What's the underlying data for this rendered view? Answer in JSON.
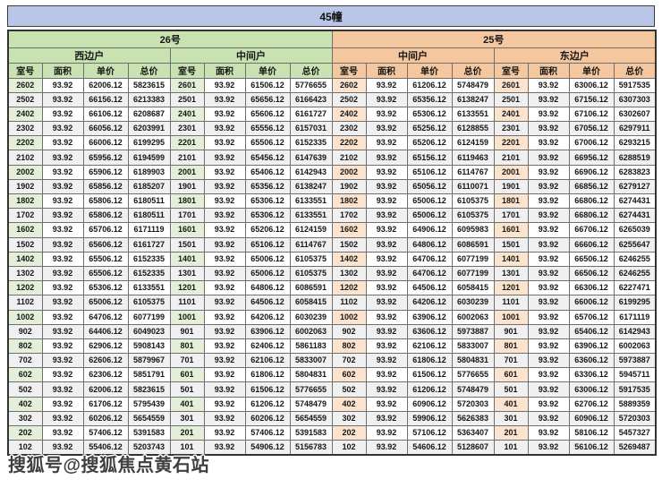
{
  "page": {
    "title": "45幢"
  },
  "watermark": {
    "text": "搜狐号@搜狐焦点黄石站"
  },
  "colors": {
    "title_bg": "#b9c6e8",
    "green_header": "#c9e2b2",
    "green_room_cell": "#e4efda",
    "peach_header": "#f4c79e",
    "peach_room_cell": "#fbe3cd",
    "zebra_row": "#f0f0f0"
  },
  "table": {
    "buildings": [
      {
        "name": "26号"
      },
      {
        "name": "25号"
      }
    ],
    "unit_headers": [
      "西边户",
      "中间户",
      "中间户",
      "东边户"
    ],
    "column_headers": [
      "室号",
      "面积",
      "单价",
      "总价"
    ],
    "groups": [
      {
        "building": "26号",
        "unit": "西边户",
        "rows": [
          [
            "2602",
            "93.92",
            "62006.12",
            "5823615"
          ],
          [
            "2502",
            "93.92",
            "66156.12",
            "6213383"
          ],
          [
            "2402",
            "93.92",
            "66106.12",
            "6208687"
          ],
          [
            "2302",
            "93.92",
            "66056.12",
            "6203991"
          ],
          [
            "2202",
            "93.92",
            "66006.12",
            "6199295"
          ],
          [
            "2102",
            "93.92",
            "65956.12",
            "6194599"
          ],
          [
            "2002",
            "93.92",
            "65906.12",
            "6189903"
          ],
          [
            "1902",
            "93.92",
            "65856.12",
            "6185207"
          ],
          [
            "1802",
            "93.92",
            "65806.12",
            "6180511"
          ],
          [
            "1702",
            "93.92",
            "65806.12",
            "6180511"
          ],
          [
            "1602",
            "93.92",
            "65706.12",
            "6171119"
          ],
          [
            "1502",
            "93.92",
            "65606.12",
            "6161727"
          ],
          [
            "1402",
            "93.92",
            "65506.12",
            "6152335"
          ],
          [
            "1302",
            "93.92",
            "65506.12",
            "6152335"
          ],
          [
            "1202",
            "93.92",
            "65306.12",
            "6133551"
          ],
          [
            "1102",
            "93.92",
            "65006.12",
            "6105375"
          ],
          [
            "1002",
            "93.92",
            "64706.12",
            "6077199"
          ],
          [
            "902",
            "93.92",
            "64406.12",
            "6049023"
          ],
          [
            "802",
            "93.92",
            "62906.12",
            "5908143"
          ],
          [
            "702",
            "93.92",
            "62606.12",
            "5879967"
          ],
          [
            "602",
            "93.92",
            "62306.12",
            "5851791"
          ],
          [
            "502",
            "93.92",
            "62006.12",
            "5823615"
          ],
          [
            "402",
            "93.92",
            "61706.12",
            "5795439"
          ],
          [
            "302",
            "93.92",
            "60206.12",
            "5654559"
          ],
          [
            "202",
            "93.92",
            "57406.12",
            "5391583"
          ],
          [
            "102",
            "93.92",
            "55406.12",
            "5203743"
          ]
        ]
      },
      {
        "building": "26号",
        "unit": "中间户",
        "rows": [
          [
            "2601",
            "93.92",
            "61506.12",
            "5776655"
          ],
          [
            "2501",
            "93.92",
            "65656.12",
            "6166423"
          ],
          [
            "2401",
            "93.92",
            "65606.12",
            "6161727"
          ],
          [
            "2301",
            "93.92",
            "65556.12",
            "6157031"
          ],
          [
            "2201",
            "93.92",
            "65506.12",
            "6152335"
          ],
          [
            "2101",
            "93.92",
            "65456.12",
            "6147639"
          ],
          [
            "2001",
            "93.92",
            "65406.12",
            "6142943"
          ],
          [
            "1901",
            "93.92",
            "65356.12",
            "6138247"
          ],
          [
            "1801",
            "93.92",
            "65306.12",
            "6133551"
          ],
          [
            "1701",
            "93.92",
            "65306.12",
            "6133551"
          ],
          [
            "1601",
            "93.92",
            "65206.12",
            "6124159"
          ],
          [
            "1501",
            "93.92",
            "65106.12",
            "6114767"
          ],
          [
            "1401",
            "93.92",
            "65006.12",
            "6105375"
          ],
          [
            "1301",
            "93.92",
            "65006.12",
            "6105375"
          ],
          [
            "1201",
            "93.92",
            "64806.12",
            "6086591"
          ],
          [
            "1101",
            "93.92",
            "64506.12",
            "6058415"
          ],
          [
            "1001",
            "93.92",
            "64206.12",
            "6030239"
          ],
          [
            "901",
            "93.92",
            "63906.12",
            "6002063"
          ],
          [
            "801",
            "93.92",
            "62406.12",
            "5861183"
          ],
          [
            "701",
            "93.92",
            "62106.12",
            "5833007"
          ],
          [
            "601",
            "93.92",
            "61806.12",
            "5804831"
          ],
          [
            "501",
            "93.92",
            "61506.12",
            "5776655"
          ],
          [
            "401",
            "93.92",
            "61206.12",
            "5748479"
          ],
          [
            "301",
            "93.92",
            "60206.12",
            "5654559"
          ],
          [
            "201",
            "93.92",
            "57406.12",
            "5391583"
          ],
          [
            "101",
            "93.92",
            "54906.12",
            "5156783"
          ]
        ]
      },
      {
        "building": "25号",
        "unit": "中间户",
        "rows": [
          [
            "2602",
            "93.92",
            "61206.12",
            "5748479"
          ],
          [
            "2502",
            "93.92",
            "65356.12",
            "6138247"
          ],
          [
            "2402",
            "93.92",
            "65306.12",
            "6133551"
          ],
          [
            "2302",
            "93.92",
            "65256.12",
            "6128855"
          ],
          [
            "2202",
            "93.92",
            "65206.12",
            "6124159"
          ],
          [
            "2102",
            "93.92",
            "65156.12",
            "6119463"
          ],
          [
            "2002",
            "93.92",
            "65106.12",
            "6114767"
          ],
          [
            "1902",
            "93.92",
            "65056.12",
            "6110071"
          ],
          [
            "1802",
            "93.92",
            "65006.12",
            "6105375"
          ],
          [
            "1702",
            "93.92",
            "65006.12",
            "6105375"
          ],
          [
            "1602",
            "93.92",
            "64906.12",
            "6095983"
          ],
          [
            "1502",
            "93.92",
            "64806.12",
            "6086591"
          ],
          [
            "1402",
            "93.92",
            "64706.12",
            "6077199"
          ],
          [
            "1302",
            "93.92",
            "64706.12",
            "6077199"
          ],
          [
            "1202",
            "93.92",
            "64506.12",
            "6058415"
          ],
          [
            "1102",
            "93.92",
            "64206.12",
            "6030239"
          ],
          [
            "1002",
            "93.92",
            "63906.12",
            "6002063"
          ],
          [
            "902",
            "93.92",
            "63606.12",
            "5973887"
          ],
          [
            "802",
            "93.92",
            "62106.12",
            "5833007"
          ],
          [
            "702",
            "93.92",
            "61806.12",
            "5804831"
          ],
          [
            "602",
            "93.92",
            "61506.12",
            "5776655"
          ],
          [
            "502",
            "93.92",
            "61206.12",
            "5748479"
          ],
          [
            "402",
            "93.92",
            "60906.12",
            "5720303"
          ],
          [
            "302",
            "93.92",
            "59906.12",
            "5626383"
          ],
          [
            "202",
            "93.92",
            "57106.12",
            "5363407"
          ],
          [
            "102",
            "93.92",
            "54606.12",
            "5128607"
          ]
        ]
      },
      {
        "building": "25号",
        "unit": "东边户",
        "rows": [
          [
            "2601",
            "93.92",
            "63006.12",
            "5917535"
          ],
          [
            "2501",
            "93.92",
            "67156.12",
            "6307303"
          ],
          [
            "2401",
            "93.92",
            "67106.12",
            "6302607"
          ],
          [
            "2301",
            "93.92",
            "67056.12",
            "6297911"
          ],
          [
            "2201",
            "93.92",
            "67006.12",
            "6293215"
          ],
          [
            "2101",
            "93.92",
            "66956.12",
            "6288519"
          ],
          [
            "2001",
            "93.92",
            "66906.12",
            "6283823"
          ],
          [
            "1901",
            "93.92",
            "66856.12",
            "6279127"
          ],
          [
            "1801",
            "93.92",
            "66806.12",
            "6274431"
          ],
          [
            "1701",
            "93.92",
            "66806.12",
            "6274431"
          ],
          [
            "1601",
            "93.92",
            "66706.12",
            "6265039"
          ],
          [
            "1501",
            "93.92",
            "66606.12",
            "6255647"
          ],
          [
            "1401",
            "93.92",
            "66506.12",
            "6246255"
          ],
          [
            "1301",
            "93.92",
            "66506.12",
            "6246255"
          ],
          [
            "1201",
            "93.92",
            "66306.12",
            "6227471"
          ],
          [
            "1101",
            "93.92",
            "66006.12",
            "6199295"
          ],
          [
            "1001",
            "93.92",
            "65706.12",
            "6171119"
          ],
          [
            "901",
            "93.92",
            "65406.12",
            "6142943"
          ],
          [
            "801",
            "93.92",
            "63906.12",
            "6002063"
          ],
          [
            "701",
            "93.92",
            "63606.12",
            "5973887"
          ],
          [
            "601",
            "93.92",
            "63306.12",
            "5945711"
          ],
          [
            "501",
            "93.92",
            "63006.12",
            "5917535"
          ],
          [
            "401",
            "93.92",
            "62706.12",
            "5889359"
          ],
          [
            "301",
            "93.92",
            "60906.12",
            "5720303"
          ],
          [
            "201",
            "93.92",
            "58106.12",
            "5457327"
          ],
          [
            "101",
            "93.92",
            "56106.12",
            "5269487"
          ]
        ]
      }
    ]
  }
}
